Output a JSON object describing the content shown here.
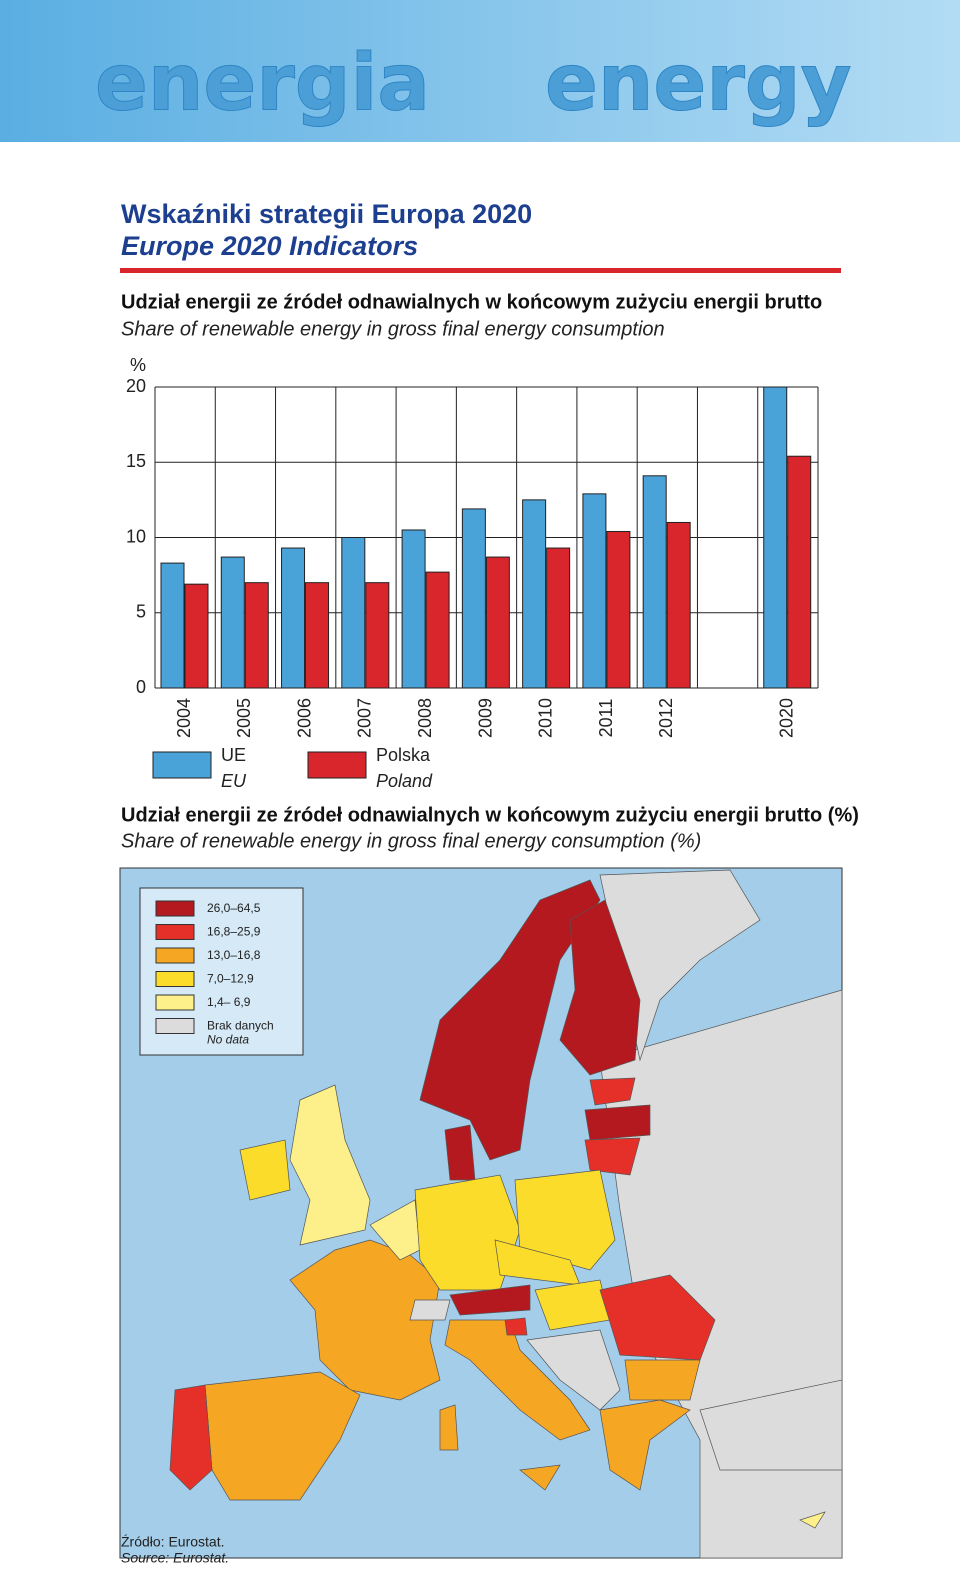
{
  "header": {
    "banner_pl": "energia",
    "banner_en": "energy",
    "title_pl": "Wskaźniki strategii Europa 2020",
    "title_en": "Europe 2020 Indicators"
  },
  "chart_data": {
    "type": "bar",
    "title": "Udział energii ze źródeł odnawialnych w końcowym zużyciu energii brutto",
    "subtitle": "Share of renewable energy in gross final energy consumption",
    "y_unit": "%",
    "categories": [
      "2004",
      "2005",
      "2006",
      "2007",
      "2008",
      "2009",
      "2010",
      "2011",
      "2012",
      null,
      "2020"
    ],
    "series": [
      {
        "name": "UE",
        "name_en": "EU",
        "color": "#4aa3d8",
        "values": [
          8.3,
          8.7,
          9.3,
          10.0,
          10.5,
          11.9,
          12.5,
          12.9,
          14.1,
          null,
          20
        ]
      },
      {
        "name": "Polska",
        "name_en": "Poland",
        "color": "#d8262c",
        "values": [
          6.9,
          7.0,
          7.0,
          7.0,
          7.7,
          8.7,
          9.3,
          10.4,
          11.0,
          null,
          15.4
        ]
      }
    ],
    "ylim": [
      0,
      20
    ],
    "yticks": [
      0,
      5,
      10,
      15,
      20
    ],
    "grid": true
  },
  "map": {
    "title": "Udział energii ze źródeł odnawialnych w końcowym zużyciu energii brutto (%)",
    "subtitle": "Share of renewable energy in gross final energy consumption (%)",
    "legend": [
      {
        "label": "26,0–64,5",
        "color": "#b3191f"
      },
      {
        "label": "16,8–25,9",
        "color": "#e5302a"
      },
      {
        "label": "13,0–16,8",
        "color": "#f5a623"
      },
      {
        "label": "7,0–12,9",
        "color": "#fbdc2a"
      },
      {
        "label": "1,4– 6,9",
        "color": "#fdf08a"
      },
      {
        "label": "Brak danych",
        "label_en": "No data",
        "color": "#dcdcdc"
      }
    ]
  },
  "source": {
    "pl": "Źródło: Eurostat.",
    "en": "Source: Eurostat."
  }
}
